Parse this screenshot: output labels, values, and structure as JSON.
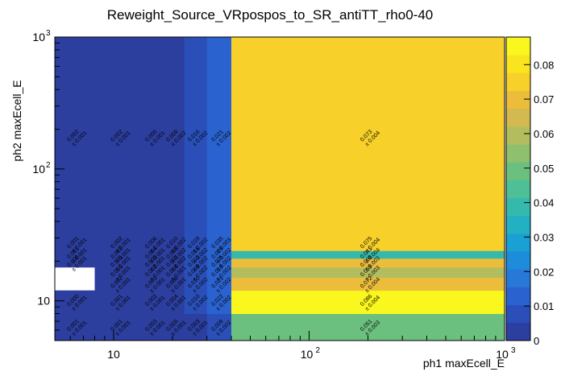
{
  "chart_data": {
    "type": "heatmap",
    "title": "Reweight_Source_VRpospos_to_SR_antiTT_rho0-40",
    "xlabel": "ph1 maxEcell_E",
    "ylabel": "ph2 maxEcell_E",
    "x_scale": "log",
    "y_scale": "log",
    "xlim": [
      5,
      1000
    ],
    "ylim": [
      5,
      1000
    ],
    "x_ticks": [
      {
        "v": 10,
        "base": "10",
        "exp": ""
      },
      {
        "v": 100,
        "base": "10",
        "exp": "2"
      },
      {
        "v": 1000,
        "base": "10",
        "exp": "3"
      }
    ],
    "y_ticks": [
      {
        "v": 10,
        "base": "10",
        "exp": ""
      },
      {
        "v": 100,
        "base": "10",
        "exp": "2"
      },
      {
        "v": 1000,
        "base": "10",
        "exp": "3"
      }
    ],
    "colorbar": {
      "min": 0,
      "max": 0.088,
      "ticks": [
        "0",
        "0.01",
        "0.02",
        "0.03",
        "0.04",
        "0.05",
        "0.06",
        "0.07",
        "0.08"
      ],
      "palette": [
        "#2c3e9e",
        "#2a4fb8",
        "#2a63cf",
        "#2878d8",
        "#1d8cda",
        "#1aa0d3",
        "#22b0c2",
        "#36b9ad",
        "#4fbf97",
        "#6cc07f",
        "#8fc06e",
        "#b3bd5e",
        "#d3b94f",
        "#ecbd3b",
        "#f7d02a",
        "#f9e51f",
        "#f9f71d"
      ]
    },
    "x_bins": [
      5,
      8,
      14,
      18,
      23,
      30,
      40,
      1000
    ],
    "y_bins": [
      5,
      8,
      12,
      15,
      18,
      21,
      24,
      30,
      1000
    ],
    "cells": [
      {
        "xi": 0,
        "yi": 0,
        "v": 0.001,
        "t": "0.001",
        "e": "0.001"
      },
      {
        "xi": 1,
        "yi": 0,
        "v": 0.001,
        "t": "0.001",
        "e": "0.001"
      },
      {
        "xi": 2,
        "yi": 0,
        "v": 0.002,
        "t": "0.003",
        "e": "0.001"
      },
      {
        "xi": 3,
        "yi": 0,
        "v": 0.003,
        "t": "0.005",
        "e": "0.001"
      },
      {
        "xi": 4,
        "yi": 0,
        "v": 0.004,
        "t": "0.003",
        "e": "0.001"
      },
      {
        "xi": 5,
        "yi": 0,
        "v": 0.006,
        "t": "0.009",
        "e": "0.002"
      },
      {
        "xi": 6,
        "yi": 0,
        "v": 0.051,
        "t": "0.051",
        "e": "0.003"
      },
      {
        "xi": 0,
        "yi": 1,
        "v": 0.001,
        "t": "0.000",
        "e": "0.001"
      },
      {
        "xi": 1,
        "yi": 1,
        "v": 0.002,
        "t": "0.001",
        "e": "0.001"
      },
      {
        "xi": 2,
        "yi": 1,
        "v": 0.003,
        "t": "0.002",
        "e": "0.001"
      },
      {
        "xi": 3,
        "yi": 1,
        "v": 0.005,
        "t": "0.004",
        "e": "0.001"
      },
      {
        "xi": 4,
        "yi": 1,
        "v": 0.008,
        "t": "0.010",
        "e": "0.002"
      },
      {
        "xi": 5,
        "yi": 1,
        "v": 0.011,
        "t": "0.022",
        "e": "0.002"
      },
      {
        "xi": 6,
        "yi": 1,
        "v": 0.086,
        "t": "0.086",
        "e": "0.004"
      },
      {
        "xi": 1,
        "yi": 2,
        "v": 0.002,
        "t": "0.002",
        "e": "0.001"
      },
      {
        "xi": 2,
        "yi": 2,
        "v": 0.003,
        "t": "0.003",
        "e": "0.001"
      },
      {
        "xi": 3,
        "yi": 2,
        "v": 0.005,
        "t": "0.006",
        "e": "0.001"
      },
      {
        "xi": 4,
        "yi": 2,
        "v": 0.008,
        "t": "0.010",
        "e": "0.002"
      },
      {
        "xi": 5,
        "yi": 2,
        "v": 0.012,
        "t": "0.021",
        "e": "0.002"
      },
      {
        "xi": 6,
        "yi": 2,
        "v": 0.072,
        "t": "0.072",
        "e": "0.004"
      },
      {
        "xi": 1,
        "yi": 3,
        "v": 0.002,
        "t": "0.001",
        "e": "0.001"
      },
      {
        "xi": 2,
        "yi": 3,
        "v": 0.003,
        "t": "0.002",
        "e": "0.001"
      },
      {
        "xi": 3,
        "yi": 3,
        "v": 0.005,
        "t": "0.004",
        "e": "0.001"
      },
      {
        "xi": 4,
        "yi": 3,
        "v": 0.008,
        "t": "0.009",
        "e": "0.002"
      },
      {
        "xi": 5,
        "yi": 3,
        "v": 0.012,
        "t": "0.018",
        "e": "0.002"
      },
      {
        "xi": 6,
        "yi": 3,
        "v": 0.059,
        "t": "0.059",
        "e": "0.003"
      },
      {
        "xi": 0,
        "yi": 4,
        "v": 0.001,
        "t": "0.000",
        "e": "0.001"
      },
      {
        "xi": 1,
        "yi": 4,
        "v": 0.002,
        "t": "0.001",
        "e": "0.001"
      },
      {
        "xi": 2,
        "yi": 4,
        "v": 0.003,
        "t": "0.003",
        "e": "0.001"
      },
      {
        "xi": 3,
        "yi": 4,
        "v": 0.005,
        "t": "0.007",
        "e": "0.002"
      },
      {
        "xi": 4,
        "yi": 4,
        "v": 0.008,
        "t": "0.013",
        "e": "0.002"
      },
      {
        "xi": 5,
        "yi": 4,
        "v": 0.012,
        "t": "0.025",
        "e": "0.002"
      },
      {
        "xi": 6,
        "yi": 4,
        "v": 0.069,
        "t": "0.069",
        "e": "0.003"
      },
      {
        "xi": 0,
        "yi": 5,
        "v": 0.001,
        "t": "0.001",
        "e": "0.001"
      },
      {
        "xi": 1,
        "yi": 5,
        "v": 0.002,
        "t": "0.002",
        "e": "0.001"
      },
      {
        "xi": 2,
        "yi": 5,
        "v": 0.003,
        "t": "0.004",
        "e": "0.001"
      },
      {
        "xi": 3,
        "yi": 5,
        "v": 0.005,
        "t": "0.008",
        "e": "0.002"
      },
      {
        "xi": 4,
        "yi": 5,
        "v": 0.008,
        "t": "0.016",
        "e": "0.002"
      },
      {
        "xi": 5,
        "yi": 5,
        "v": 0.013,
        "t": "0.029",
        "e": "0.002"
      },
      {
        "xi": 6,
        "yi": 5,
        "v": 0.041,
        "t": "0.041",
        "e": "0.004"
      },
      {
        "xi": 0,
        "yi": 6,
        "v": 0.001,
        "t": "0.001",
        "e": "0.001"
      },
      {
        "xi": 1,
        "yi": 6,
        "v": 0.002,
        "t": "0.002",
        "e": "0.001"
      },
      {
        "xi": 2,
        "yi": 6,
        "v": 0.003,
        "t": "0.006",
        "e": "0.001"
      },
      {
        "xi": 3,
        "yi": 6,
        "v": 0.005,
        "t": "0.010",
        "e": "0.002"
      },
      {
        "xi": 4,
        "yi": 6,
        "v": 0.008,
        "t": "0.018",
        "e": "0.002"
      },
      {
        "xi": 5,
        "yi": 6,
        "v": 0.013,
        "t": "0.035",
        "e": "0.003"
      },
      {
        "xi": 6,
        "yi": 6,
        "v": 0.075,
        "t": "0.075",
        "e": "0.004"
      },
      {
        "xi": 0,
        "yi": 7,
        "v": 0.001,
        "t": "0.002",
        "e": "0.001"
      },
      {
        "xi": 1,
        "yi": 7,
        "v": 0.002,
        "t": "0.002",
        "e": "0.001"
      },
      {
        "xi": 2,
        "yi": 7,
        "v": 0.003,
        "t": "0.005",
        "e": "0.001"
      },
      {
        "xi": 3,
        "yi": 7,
        "v": 0.005,
        "t": "0.009",
        "e": "0.002"
      },
      {
        "xi": 4,
        "yi": 7,
        "v": 0.008,
        "t": "0.016",
        "e": "0.002"
      },
      {
        "xi": 5,
        "yi": 7,
        "v": 0.013,
        "t": "0.021",
        "e": "0.002"
      },
      {
        "xi": 6,
        "yi": 7,
        "v": 0.073,
        "t": "0.073",
        "e": "0.004"
      }
    ]
  }
}
